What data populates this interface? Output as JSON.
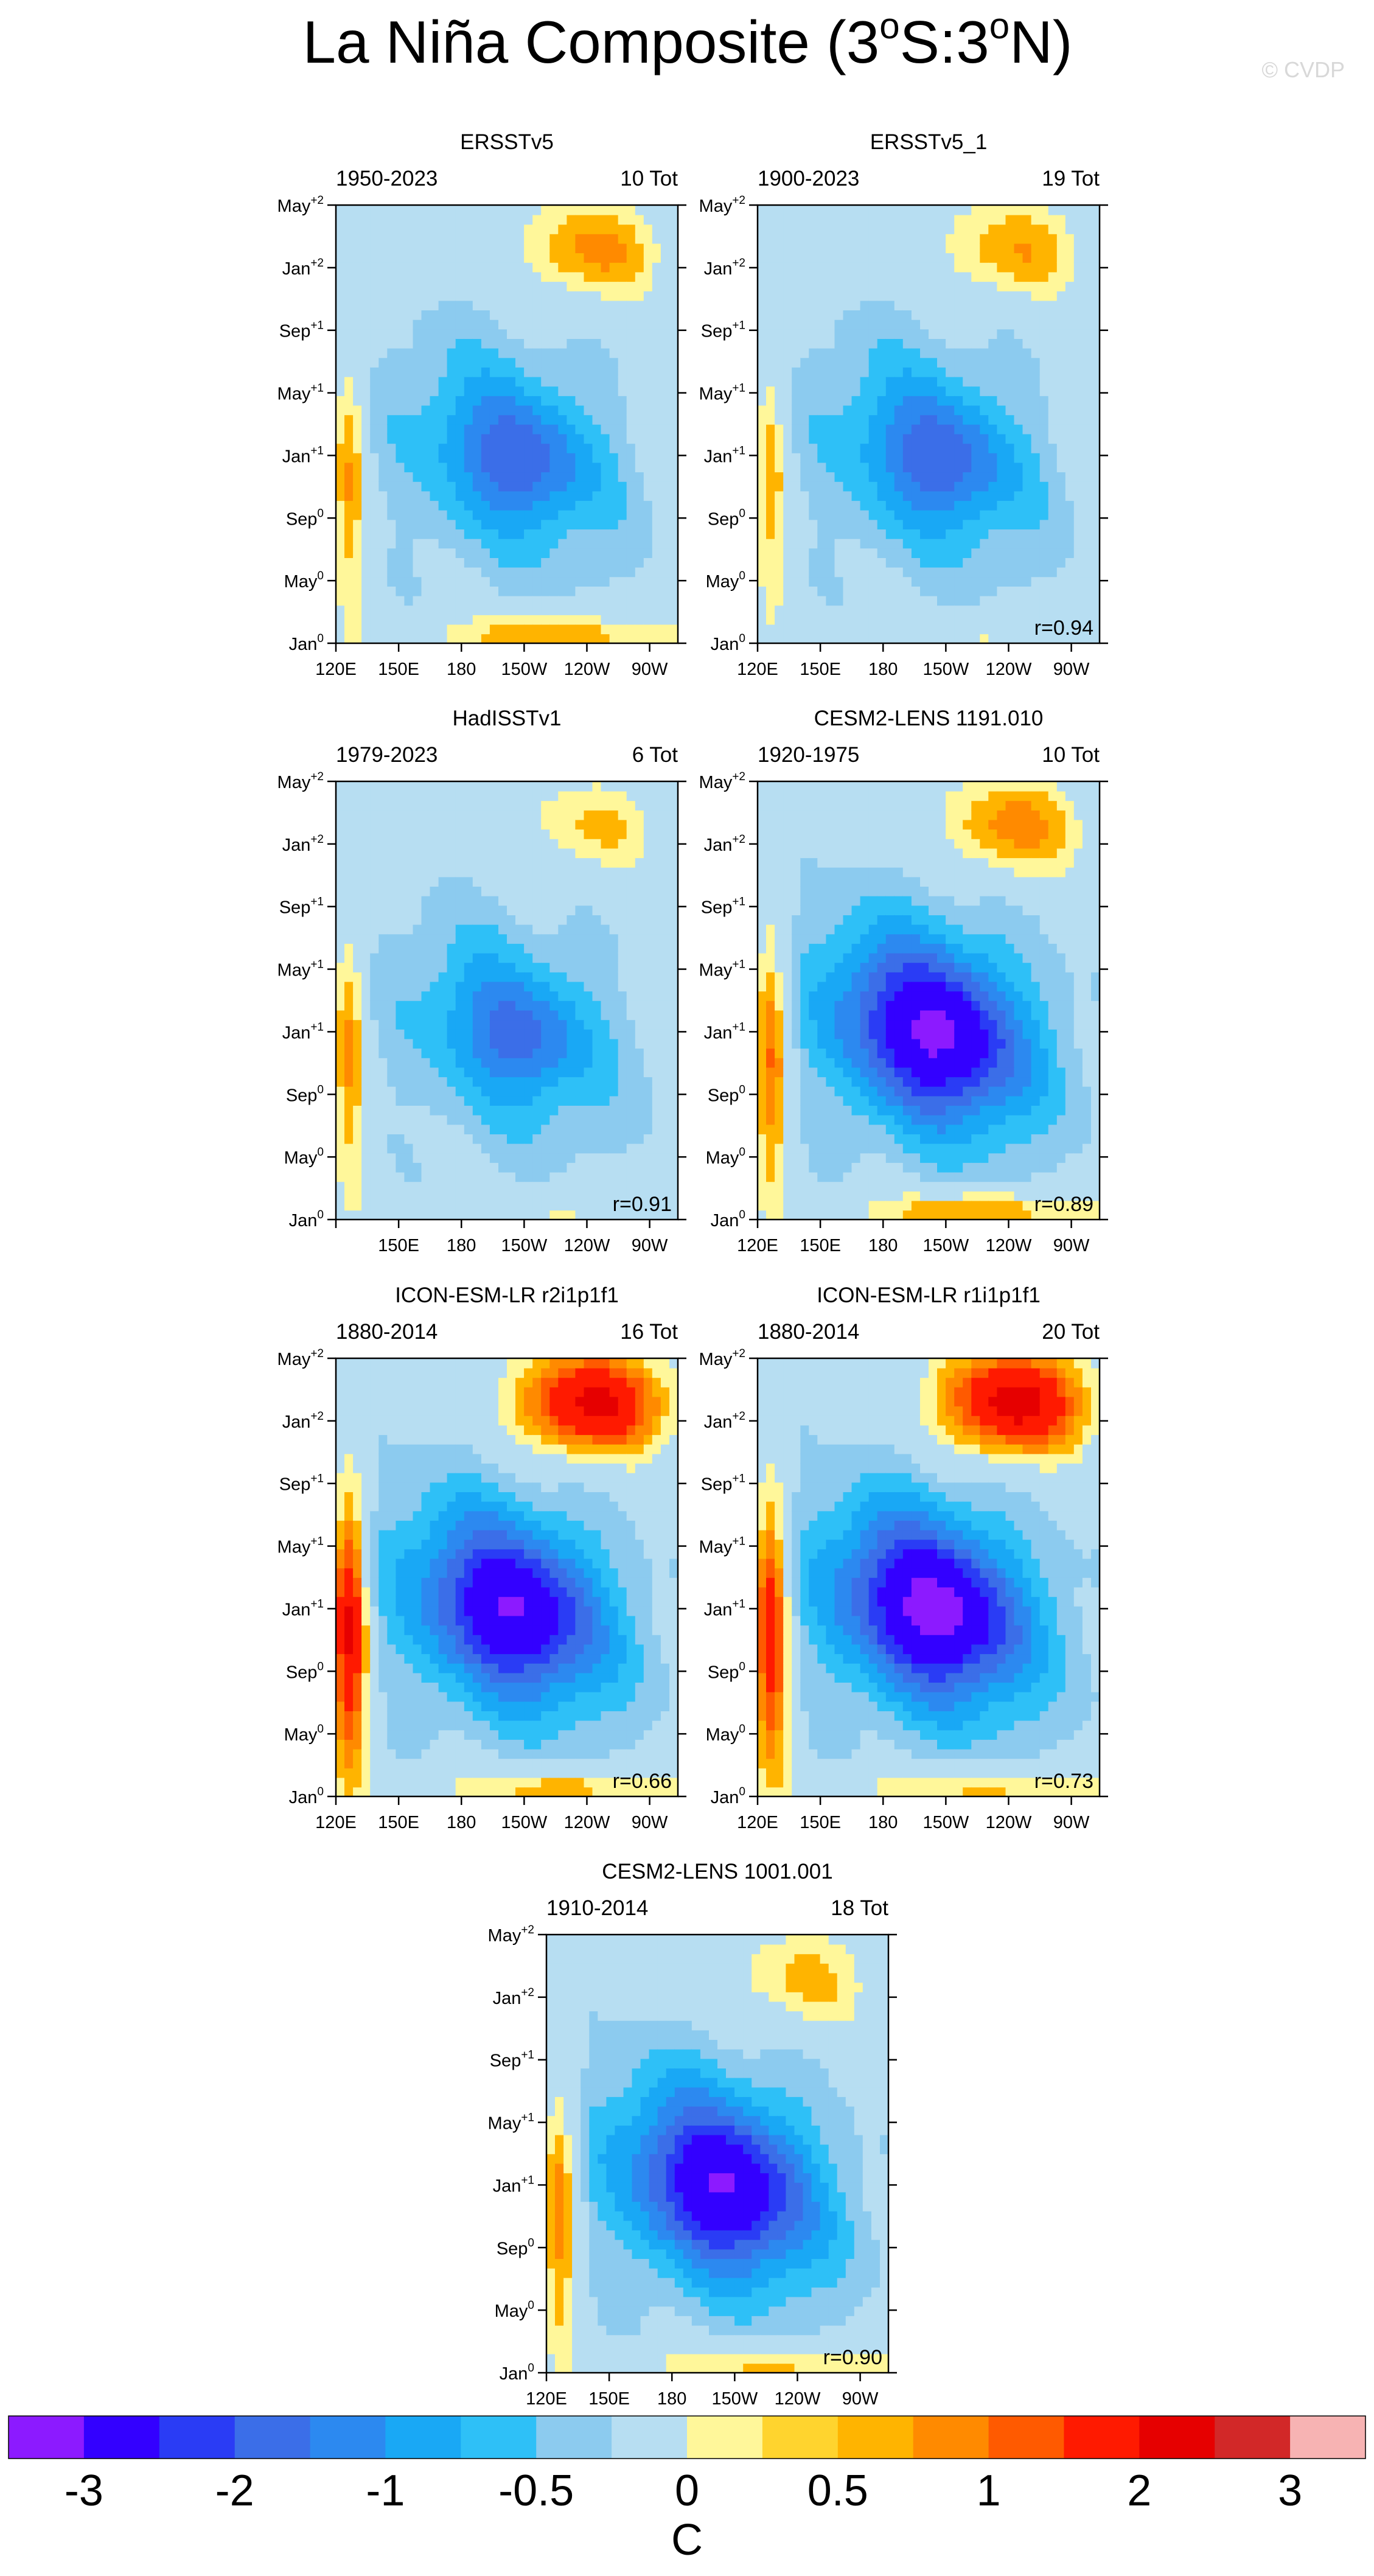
{
  "page": {
    "title": "La Niña Composite (3°S:3°N)",
    "title_main": "La Niña Composite (3",
    "title_o1": "o",
    "title_mid": "S:3",
    "title_o2": "o",
    "title_end": "N)",
    "watermark": "© CVDP"
  },
  "y_ticks": [
    {
      "base": "Jan",
      "sup": "0"
    },
    {
      "base": "May",
      "sup": "0"
    },
    {
      "base": "Sep",
      "sup": "0"
    },
    {
      "base": "Jan",
      "sup": "+1"
    },
    {
      "base": "May",
      "sup": "+1"
    },
    {
      "base": "Sep",
      "sup": "+1"
    },
    {
      "base": "Jan",
      "sup": "+2"
    },
    {
      "base": "May",
      "sup": "+2"
    }
  ],
  "x_ticks": [
    "120E",
    "150E",
    "180",
    "150W",
    "120W",
    "90W"
  ],
  "colors": {
    "palette": [
      "#8c1aff",
      "#3300ff",
      "#2a3cf5",
      "#3b6ee8",
      "#2c89f0",
      "#19a8f5",
      "#2ec0f7",
      "#8ccbef",
      "#b7def2",
      "#fff79a",
      "#ffd42e",
      "#ffb400",
      "#ff8a00",
      "#ff5a00",
      "#ff1a00",
      "#e60000",
      "#d22828",
      "#f7b3b3"
    ]
  },
  "colorbar": {
    "labels": [
      "-3",
      "-2",
      "-1",
      "-0.5",
      "0",
      "0.5",
      "1",
      "2",
      "3"
    ],
    "unit": "C"
  },
  "chart_data": [
    {
      "type": "heatmap",
      "title": "ERSSTv5",
      "period": "1950-2023",
      "count": "10 Tot",
      "r": "",
      "xlabels": [
        "120E",
        "150E",
        "180",
        "150W",
        "120W",
        "90W"
      ],
      "anom_max": -1.3,
      "west_warm": 0.5,
      "late_warm": 0.55,
      "early_warm": 0.55
    },
    {
      "type": "heatmap",
      "title": "ERSSTv5_1",
      "period": "1900-2023",
      "count": "19 Tot",
      "r": "r=0.94",
      "xlabels": [
        "120E",
        "150E",
        "180",
        "150W",
        "120W",
        "90W"
      ],
      "anom_max": -1.3,
      "west_warm": 0.4,
      "late_warm": 0.45,
      "early_warm": 0.1
    },
    {
      "type": "heatmap",
      "title": "HadISSTv1",
      "period": "1979-2023",
      "count": "6 Tot",
      "r": "r=0.91",
      "xlabels": [
        "",
        "150E",
        "180",
        "150W",
        "120W",
        "90W"
      ],
      "anom_max": -1.2,
      "west_warm": 0.55,
      "late_warm": 0.25,
      "early_warm": 0.1
    },
    {
      "type": "heatmap",
      "title": "CESM2-LENS 1191.010",
      "period": "1920-1975",
      "count": "10 Tot",
      "r": "r=0.89",
      "xlabels": [
        "120E",
        "150E",
        "180",
        "150W",
        "120W",
        "90W"
      ],
      "anom_max": -2.2,
      "west_warm": 0.8,
      "late_warm": 0.6,
      "early_warm": 0.6
    },
    {
      "type": "heatmap",
      "title": "ICON-ESM-LR r2i1p1f1",
      "period": "1880-2014",
      "count": "16 Tot",
      "r": "r=0.66",
      "xlabels": [
        "120E",
        "150E",
        "180",
        "150W",
        "120W",
        "90W"
      ],
      "anom_max": -2.1,
      "west_warm": 1.6,
      "late_warm": 1.6,
      "early_warm": 0.5
    },
    {
      "type": "heatmap",
      "title": "ICON-ESM-LR r1i1p1f1",
      "period": "1880-2014",
      "count": "20 Tot",
      "r": "r=0.73",
      "xlabels": [
        "120E",
        "150E",
        "180",
        "150W",
        "120W",
        "90W"
      ],
      "anom_max": -2.3,
      "west_warm": 1.4,
      "late_warm": 1.7,
      "early_warm": 0.45
    },
    {
      "type": "heatmap",
      "title": "CESM2-LENS 1001.001",
      "period": "1910-2014",
      "count": "18 Tot",
      "r": "r=0.90",
      "xlabels": [
        "120E",
        "150E",
        "180",
        "150W",
        "120W",
        "90W"
      ],
      "anom_max": -2.1,
      "west_warm": 0.7,
      "late_warm": 0.3,
      "early_warm": 0.45
    }
  ]
}
